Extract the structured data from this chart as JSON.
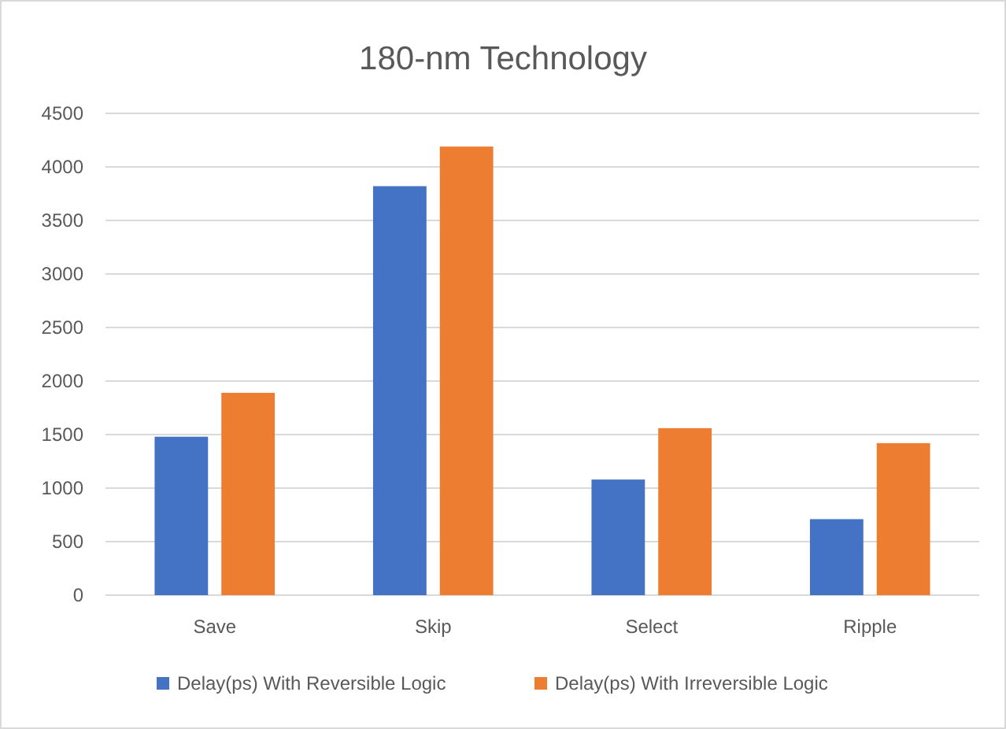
{
  "chart_data": {
    "type": "bar",
    "title": "180-nm Technology",
    "categories": [
      "Save",
      "Skip",
      "Select",
      "Ripple"
    ],
    "series": [
      {
        "name": "Delay(ps) With Reversible Logic",
        "color": "#4472c4",
        "values": [
          1480,
          3820,
          1080,
          710
        ]
      },
      {
        "name": "Delay(ps) With Irreversible Logic",
        "color": "#ed7d31",
        "values": [
          1890,
          4190,
          1560,
          1420
        ]
      }
    ],
    "ylim": [
      0,
      4500
    ],
    "yticks": [
      0,
      500,
      1000,
      1500,
      2000,
      2500,
      3000,
      3500,
      4000,
      4500
    ],
    "grid": "y",
    "legend": "bottom"
  }
}
